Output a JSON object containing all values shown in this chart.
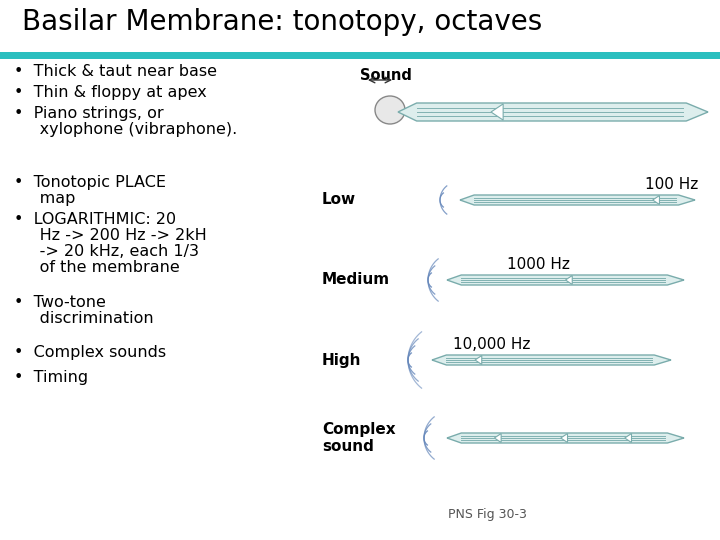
{
  "title": "Basilar Membrane: tonotopy, octaves",
  "title_fontsize": 20,
  "title_color": "#000000",
  "background_color": "#ffffff",
  "teal_bar_color": "#2abfbf",
  "bullet_points_top": [
    "Thick & taut near base",
    "Thin & floppy at apex",
    "Piano strings, or",
    "   xylophone (vibraphone)."
  ],
  "bullet_points_bottom": [
    "Tonotopic PLACE",
    "   map",
    "LOGARITHMIC: 20",
    "   Hz -> 200 Hz -> 2kH",
    "   -> 20 kHz, each 1/3",
    "   of the membrane",
    "Two-tone",
    "   discrimination",
    "Complex sounds",
    "Timing"
  ],
  "side_labels": [
    "Low",
    "Medium",
    "High",
    "Complex\nsound"
  ],
  "freq_labels": [
    "100 Hz",
    "1000 Hz",
    "10,000 Hz",
    ""
  ],
  "caption": "PNS Fig 30-3",
  "body_fill": "#ddeeed",
  "body_edge": "#7aacac",
  "stripe_fill": "#8ecece",
  "stripe_edge": "#5a9898",
  "wave_color": "#6688bb",
  "label_fontsize": 11,
  "freq_fontsize": 11,
  "caption_fontsize": 9
}
